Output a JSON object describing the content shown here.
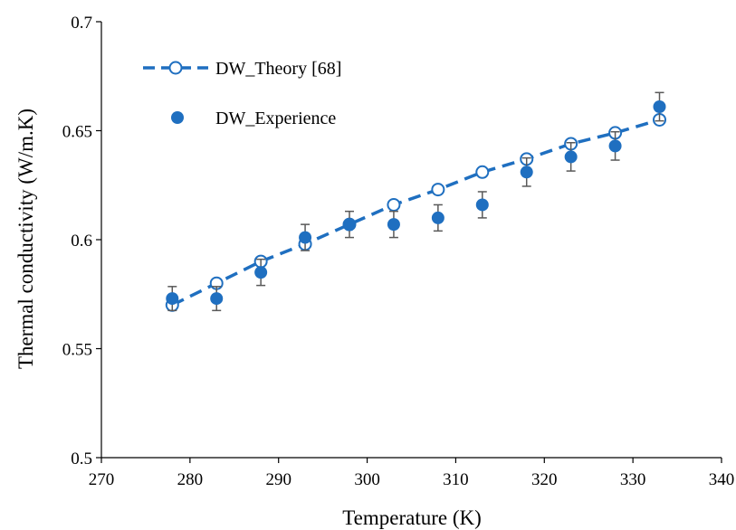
{
  "colors": {
    "series": "#1f6fc0",
    "error_bar": "#595959",
    "axis": "#000000",
    "background": "#ffffff"
  },
  "chart_data": {
    "type": "scatter",
    "title": "",
    "xlabel": "Temperature (K)",
    "ylabel": "Thermal conductivity (W/m.K)",
    "xlim": [
      270,
      340
    ],
    "ylim": [
      0.5,
      0.7
    ],
    "x_ticks": [
      270,
      280,
      290,
      300,
      310,
      320,
      330,
      340
    ],
    "y_ticks": [
      0.5,
      0.55,
      0.6,
      0.65,
      0.7
    ],
    "x_tick_labels": [
      "270",
      "280",
      "290",
      "300",
      "310",
      "320",
      "330",
      "340"
    ],
    "y_tick_labels": [
      "0.5",
      "0.55",
      "0.6",
      "0.65",
      "0.7"
    ],
    "grid": false,
    "legend_position": "top-left inside plot",
    "series": [
      {
        "name": "DW_Theory [68]",
        "style": "dashed line with hollow circle markers",
        "x": [
          278,
          283,
          288,
          293,
          298,
          303,
          308,
          313,
          318,
          323,
          328,
          333
        ],
        "y": [
          0.57,
          0.58,
          0.59,
          0.598,
          0.607,
          0.616,
          0.623,
          0.631,
          0.637,
          0.644,
          0.649,
          0.655
        ]
      },
      {
        "name": "DW_Experience",
        "style": "filled circle markers with error bars",
        "x": [
          278,
          283,
          288,
          293,
          298,
          303,
          308,
          313,
          318,
          323,
          328,
          333
        ],
        "y": [
          0.573,
          0.573,
          0.585,
          0.601,
          0.607,
          0.607,
          0.61,
          0.616,
          0.631,
          0.638,
          0.643,
          0.661
        ],
        "error": [
          0.0055,
          0.0055,
          0.006,
          0.006,
          0.006,
          0.006,
          0.006,
          0.006,
          0.0065,
          0.0065,
          0.0065,
          0.0065
        ]
      }
    ]
  }
}
